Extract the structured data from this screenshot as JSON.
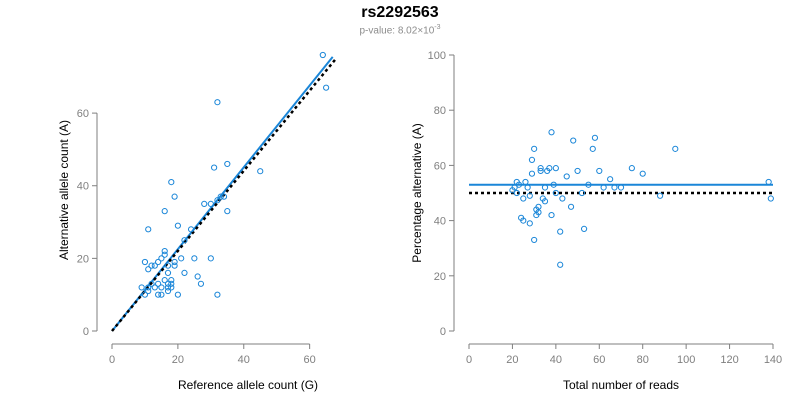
{
  "title": "rs2292563",
  "subtitle": {
    "prefix": "p-value: ",
    "mantissa": "8.02",
    "times": "×10",
    "exponent": "-3"
  },
  "colors": {
    "points": "#1a86d8",
    "fit_line": "#1a86d8",
    "reference_line": "#000000",
    "axes": "#7f7f7f"
  },
  "chart_data": [
    {
      "type": "scatter",
      "xlabel": "Reference allele count (G)",
      "ylabel": "Alternative allele count (A)",
      "xlim": [
        0,
        68
      ],
      "ylim": [
        0,
        76
      ],
      "xticks": [
        0,
        20,
        40,
        60
      ],
      "yticks": [
        0,
        20,
        40,
        60
      ],
      "grid": false,
      "points": [
        [
          10,
          10
        ],
        [
          11,
          11
        ],
        [
          11,
          12
        ],
        [
          12,
          13
        ],
        [
          13,
          12
        ],
        [
          14,
          13
        ],
        [
          14,
          10
        ],
        [
          15,
          10
        ],
        [
          15,
          12
        ],
        [
          16,
          14
        ],
        [
          17,
          11
        ],
        [
          17,
          12
        ],
        [
          17,
          13
        ],
        [
          18,
          14
        ],
        [
          18,
          13
        ],
        [
          18,
          12
        ],
        [
          19,
          19
        ],
        [
          20,
          10
        ],
        [
          12,
          18
        ],
        [
          13,
          18
        ],
        [
          14,
          19
        ],
        [
          15,
          20
        ],
        [
          16,
          22
        ],
        [
          16,
          21
        ],
        [
          17,
          16
        ],
        [
          17,
          18
        ],
        [
          19,
          18
        ],
        [
          21,
          20
        ],
        [
          20,
          29
        ],
        [
          22,
          16
        ],
        [
          22,
          25
        ],
        [
          24,
          28
        ],
        [
          25,
          20
        ],
        [
          26,
          15
        ],
        [
          27,
          13
        ],
        [
          28,
          35
        ],
        [
          30,
          35
        ],
        [
          30,
          20
        ],
        [
          32,
          10
        ],
        [
          32,
          36
        ],
        [
          33,
          37
        ],
        [
          34,
          37
        ],
        [
          35,
          33
        ],
        [
          35,
          46
        ],
        [
          31,
          45
        ],
        [
          18,
          41
        ],
        [
          19,
          37
        ],
        [
          16,
          33
        ],
        [
          11,
          28
        ],
        [
          10,
          19
        ],
        [
          11,
          17
        ],
        [
          32,
          63
        ],
        [
          64,
          76
        ],
        [
          65,
          67
        ],
        [
          45,
          44
        ],
        [
          9,
          12
        ]
      ],
      "lines": [
        {
          "kind": "fit",
          "x1": 0,
          "y1": 0,
          "x2": 67,
          "y2": 75.5
        },
        {
          "kind": "reference",
          "x1": 0,
          "y1": 0,
          "x2": 68,
          "y2": 75
        }
      ]
    },
    {
      "type": "scatter",
      "xlabel": "Total number of reads",
      "ylabel": "Percentage alternative (A)",
      "xlim": [
        0,
        140
      ],
      "ylim": [
        0,
        100
      ],
      "xticks": [
        0,
        20,
        40,
        60,
        80,
        100,
        120,
        140
      ],
      "yticks": [
        0,
        20,
        40,
        60,
        80,
        100
      ],
      "grid": false,
      "points": [
        [
          20,
          51
        ],
        [
          21,
          52
        ],
        [
          22,
          54
        ],
        [
          22,
          50
        ],
        [
          23,
          53
        ],
        [
          24,
          41
        ],
        [
          25,
          40
        ],
        [
          25,
          48
        ],
        [
          26,
          54
        ],
        [
          27,
          52
        ],
        [
          28,
          49
        ],
        [
          28,
          39
        ],
        [
          29,
          57
        ],
        [
          29,
          62
        ],
        [
          30,
          66
        ],
        [
          30,
          33
        ],
        [
          31,
          42
        ],
        [
          31,
          44
        ],
        [
          32,
          43
        ],
        [
          32,
          45
        ],
        [
          33,
          59
        ],
        [
          33,
          58
        ],
        [
          34,
          48
        ],
        [
          35,
          52
        ],
        [
          35,
          47
        ],
        [
          36,
          58
        ],
        [
          37,
          59
        ],
        [
          38,
          42
        ],
        [
          38,
          72
        ],
        [
          39,
          53
        ],
        [
          40,
          59
        ],
        [
          40,
          50
        ],
        [
          42,
          36
        ],
        [
          42,
          24
        ],
        [
          43,
          48
        ],
        [
          45,
          56
        ],
        [
          47,
          45
        ],
        [
          48,
          69
        ],
        [
          50,
          58
        ],
        [
          52,
          50
        ],
        [
          53,
          37
        ],
        [
          55,
          53
        ],
        [
          57,
          66
        ],
        [
          58,
          70
        ],
        [
          60,
          58
        ],
        [
          62,
          52
        ],
        [
          65,
          55
        ],
        [
          67,
          52
        ],
        [
          70,
          52
        ],
        [
          75,
          59
        ],
        [
          80,
          57
        ],
        [
          88,
          49
        ],
        [
          95,
          66
        ],
        [
          138,
          54
        ],
        [
          139,
          48
        ]
      ],
      "lines": [
        {
          "kind": "fit",
          "x1": 0,
          "y1": 53,
          "x2": 140,
          "y2": 53
        },
        {
          "kind": "reference",
          "x1": 0,
          "y1": 50,
          "x2": 140,
          "y2": 50
        }
      ]
    }
  ]
}
